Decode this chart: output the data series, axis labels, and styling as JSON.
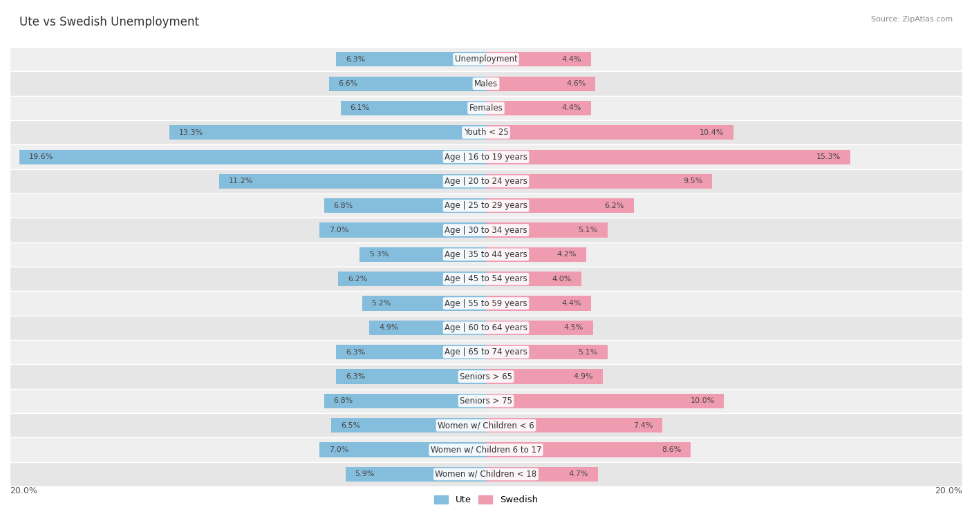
{
  "title": "Ute vs Swedish Unemployment",
  "source": "Source: ZipAtlas.com",
  "categories": [
    "Unemployment",
    "Males",
    "Females",
    "Youth < 25",
    "Age | 16 to 19 years",
    "Age | 20 to 24 years",
    "Age | 25 to 29 years",
    "Age | 30 to 34 years",
    "Age | 35 to 44 years",
    "Age | 45 to 54 years",
    "Age | 55 to 59 years",
    "Age | 60 to 64 years",
    "Age | 65 to 74 years",
    "Seniors > 65",
    "Seniors > 75",
    "Women w/ Children < 6",
    "Women w/ Children 6 to 17",
    "Women w/ Children < 18"
  ],
  "ute_values": [
    6.3,
    6.6,
    6.1,
    13.3,
    19.6,
    11.2,
    6.8,
    7.0,
    5.3,
    6.2,
    5.2,
    4.9,
    6.3,
    6.3,
    6.8,
    6.5,
    7.0,
    5.9
  ],
  "swedish_values": [
    4.4,
    4.6,
    4.4,
    10.4,
    15.3,
    9.5,
    6.2,
    5.1,
    4.2,
    4.0,
    4.4,
    4.5,
    5.1,
    4.9,
    10.0,
    7.4,
    8.6,
    4.7
  ],
  "ute_color": "#85BEDD",
  "swedish_color": "#F09CB0",
  "bar_height": 0.6,
  "max_val": 20.0,
  "bg_row_even": "#EFEFEF",
  "bg_row_odd": "#E6E6E6",
  "label_fontsize": 8.5,
  "title_fontsize": 12,
  "value_fontsize": 8,
  "source_fontsize": 8
}
